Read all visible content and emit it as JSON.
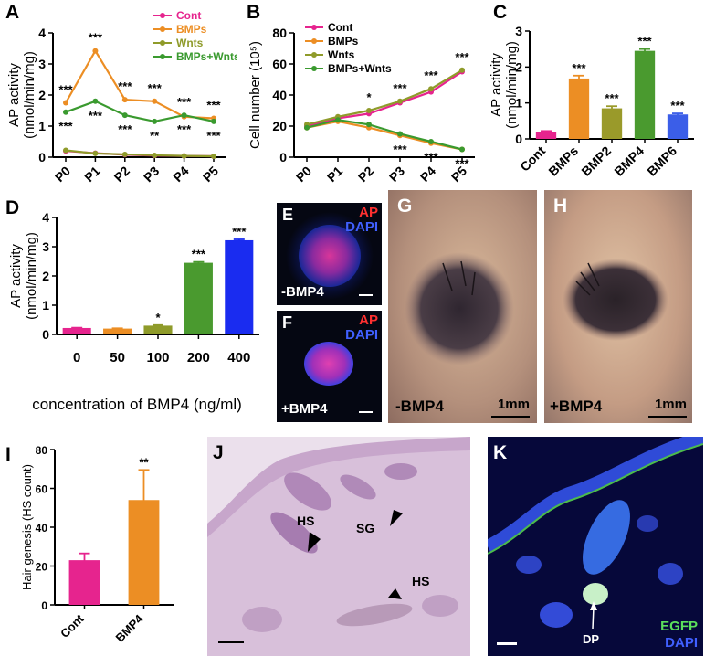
{
  "panels": {
    "A": "A",
    "B": "B",
    "C": "C",
    "D": "D",
    "E": "E",
    "F": "F",
    "G": "G",
    "H": "H",
    "I": "I",
    "J": "J",
    "K": "K"
  },
  "colors": {
    "cont": "#e6248e",
    "bmps": "#ec8e24",
    "wnts": "#8f9b2a",
    "bmps_wnts": "#3a9a2f",
    "bmp2": "#9a9a2a",
    "bmp4": "#4a9a2f",
    "bmp6": "#3b5ee8",
    "d_400": "#1a2cf0"
  },
  "chart_data": [
    {
      "panel": "A",
      "type": "line",
      "ylabel": "AP activity (nmol/min/mg)",
      "categories": [
        "P0",
        "P1",
        "P2",
        "P3",
        "P4",
        "P5"
      ],
      "ylim": [
        0,
        4
      ],
      "yticks": [
        "0",
        "1",
        "2",
        "3",
        "4"
      ],
      "legend_position": "top-right",
      "series": [
        {
          "name": "Cont",
          "values": [
            0.2,
            0.13,
            0.08,
            0.05,
            0.04,
            0.03
          ]
        },
        {
          "name": "BMPs",
          "values": [
            1.75,
            3.42,
            1.85,
            1.8,
            1.3,
            1.25
          ]
        },
        {
          "name": "Wnts",
          "values": [
            0.22,
            0.12,
            0.09,
            0.06,
            0.04,
            0.03
          ]
        },
        {
          "name": "BMPs+Wnts",
          "values": [
            1.45,
            1.8,
            1.35,
            1.15,
            1.35,
            1.15
          ]
        }
      ],
      "annotations_above": [
        "***",
        "***",
        "***",
        "***",
        "***",
        "***"
      ],
      "annotations_below": [
        "***",
        "***",
        "***",
        "**",
        "***",
        "***"
      ]
    },
    {
      "panel": "B",
      "type": "line",
      "ylabel": "Cell number (10⁵)",
      "categories": [
        "P0",
        "P1",
        "P2",
        "P3",
        "P4",
        "P5"
      ],
      "ylim": [
        0,
        80
      ],
      "yticks": [
        "0",
        "20",
        "40",
        "60",
        "80"
      ],
      "legend_position": "top-left",
      "series": [
        {
          "name": "Cont",
          "values": [
            20,
            25,
            28,
            35,
            42,
            55
          ]
        },
        {
          "name": "BMPs",
          "values": [
            19,
            23,
            19,
            14,
            9,
            5
          ]
        },
        {
          "name": "Wnts",
          "values": [
            21,
            26,
            30,
            36,
            44,
            56
          ]
        },
        {
          "name": "BMPs+Wnts",
          "values": [
            19,
            24,
            21,
            15,
            10,
            5
          ]
        }
      ],
      "annotations_above": [
        "",
        "",
        "*",
        "***",
        "***",
        "***"
      ],
      "annotations_below": [
        "",
        "",
        "",
        "***",
        "***",
        "***"
      ]
    },
    {
      "panel": "C",
      "type": "bar",
      "ylabel": "AP activity (nmol/min/mg)",
      "categories": [
        "Cont",
        "BMPs",
        "BMP2",
        "BMP4",
        "BMP6"
      ],
      "values": [
        0.2,
        1.68,
        0.85,
        2.45,
        0.68
      ],
      "errors": [
        0.02,
        0.08,
        0.06,
        0.05,
        0.03
      ],
      "ylim": [
        0,
        3
      ],
      "yticks": [
        "0",
        "1",
        "2",
        "3"
      ],
      "annotations": [
        "",
        "***",
        "***",
        "***",
        "***"
      ]
    },
    {
      "panel": "D",
      "type": "bar",
      "ylabel": "AP activity (nmol/min/mg)",
      "xlabel": "concentration of BMP4 (ng/ml)",
      "categories": [
        "0",
        "50",
        "100",
        "200",
        "400"
      ],
      "values": [
        0.22,
        0.2,
        0.3,
        2.45,
        3.22
      ],
      "errors": [
        0.01,
        0.01,
        0.02,
        0.03,
        0.03
      ],
      "ylim": [
        0,
        4
      ],
      "yticks": [
        "0",
        "1",
        "2",
        "3",
        "4"
      ],
      "annotations": [
        "",
        "",
        "*",
        "***",
        "***"
      ]
    },
    {
      "panel": "I",
      "type": "bar",
      "ylabel": "Hair genesis (HS count)",
      "categories": [
        "Cont",
        "BMP4"
      ],
      "values": [
        23,
        54
      ],
      "errors": [
        3.5,
        15.5
      ],
      "ylim": [
        0,
        80
      ],
      "yticks": [
        "0",
        "20",
        "40",
        "60",
        "80"
      ],
      "annotations": [
        "",
        "**"
      ]
    }
  ],
  "images": {
    "E": {
      "stain1": "AP",
      "stain2": "DAPI",
      "condition": "-BMP4"
    },
    "F": {
      "stain1": "AP",
      "stain2": "DAPI",
      "condition": "+BMP4"
    },
    "G": {
      "condition": "-BMP4",
      "scale": "1mm"
    },
    "H": {
      "condition": "+BMP4",
      "scale": "1mm"
    },
    "J": {
      "labels": [
        "HS",
        "SG",
        "HS"
      ]
    },
    "K": {
      "stain1": "EGFP",
      "stain2": "DAPI",
      "dp": "DP"
    }
  }
}
